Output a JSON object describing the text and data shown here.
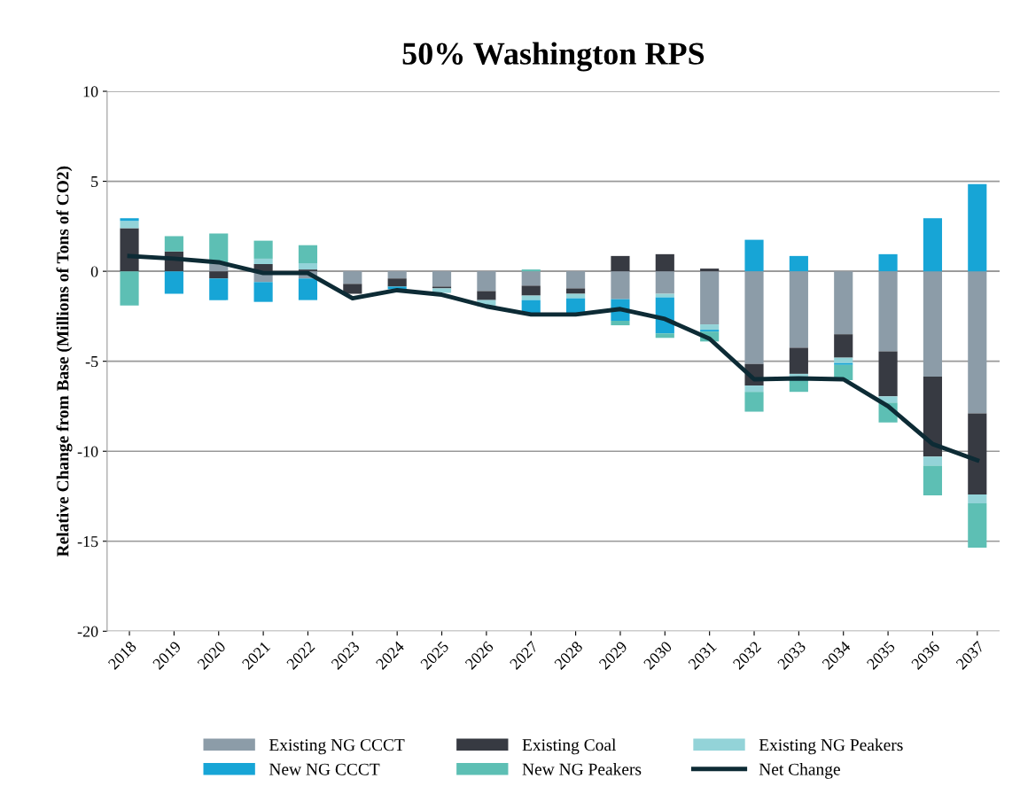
{
  "chart_data": {
    "type": "bar",
    "title": "50% Washington RPS",
    "ylabel": "Relative Change from Base (Millions of Tons of CO2)",
    "categories": [
      "2018",
      "2019",
      "2020",
      "2021",
      "2022",
      "2023",
      "2024",
      "2025",
      "2026",
      "2027",
      "2028",
      "2029",
      "2030",
      "2031",
      "2032",
      "2033",
      "2034",
      "2035",
      "2036",
      "2037"
    ],
    "stacked": true,
    "ylim": [
      -20,
      10
    ],
    "yticks": [
      -20,
      -15,
      -10,
      -5,
      0,
      5,
      10
    ],
    "grid": "y",
    "legend": "bottom",
    "series": [
      {
        "name": "Existing NG CCCT",
        "color": "#8c9ca8",
        "values": [
          0,
          0,
          0.4,
          -0.6,
          -0.4,
          -0.7,
          -0.4,
          -0.85,
          -1.1,
          -0.8,
          -0.95,
          -1.55,
          -1.25,
          -2.95,
          -5.15,
          -4.25,
          -3.5,
          -4.45,
          -5.85,
          -7.9
        ]
      },
      {
        "name": "Existing Coal",
        "color": "#373a42",
        "values": [
          2.4,
          1.1,
          -0.4,
          0.4,
          0.1,
          -0.55,
          -0.45,
          -0.1,
          -0.5,
          -0.55,
          -0.3,
          0.85,
          0.95,
          0.15,
          -1.2,
          -1.45,
          -1.3,
          -2.5,
          -4.45,
          -4.5
        ]
      },
      {
        "name": "Existing NG Peakers",
        "color": "#93d3d8",
        "values": [
          0.4,
          0,
          0,
          0.3,
          0.35,
          0,
          0,
          -0.25,
          -0.35,
          -0.25,
          -0.25,
          0,
          -0.2,
          -0.3,
          -0.35,
          -0.15,
          -0.3,
          -0.35,
          -0.5,
          -0.5
        ]
      },
      {
        "name": "New NG CCCT",
        "color": "#17a5d6",
        "values": [
          0.15,
          -1.25,
          -1.2,
          -1.1,
          -1.2,
          null,
          -0.15,
          0,
          0,
          -0.8,
          -0.9,
          -1.2,
          -2.0,
          -0.1,
          1.75,
          0.85,
          -0.1,
          0.95,
          2.95,
          4.85
        ]
      },
      {
        "name": "New NG Peakers",
        "color": "#5dbfb4",
        "values": [
          -1.9,
          0.85,
          1.7,
          1.0,
          1.0,
          null,
          0,
          0,
          0,
          0.1,
          0,
          -0.25,
          -0.25,
          -0.55,
          -1.1,
          -0.85,
          -0.85,
          -1.1,
          -1.65,
          -2.45
        ]
      },
      {
        "name": "Net Change",
        "type": "line",
        "color": "#0d2b35",
        "values": [
          0.85,
          0.7,
          0.5,
          -0.1,
          -0.1,
          -1.5,
          -1.05,
          -1.3,
          -1.95,
          -2.4,
          -2.4,
          -2.1,
          -2.65,
          -3.75,
          -6.0,
          -5.95,
          -6.0,
          -7.5,
          -9.6,
          -10.5
        ]
      }
    ]
  }
}
